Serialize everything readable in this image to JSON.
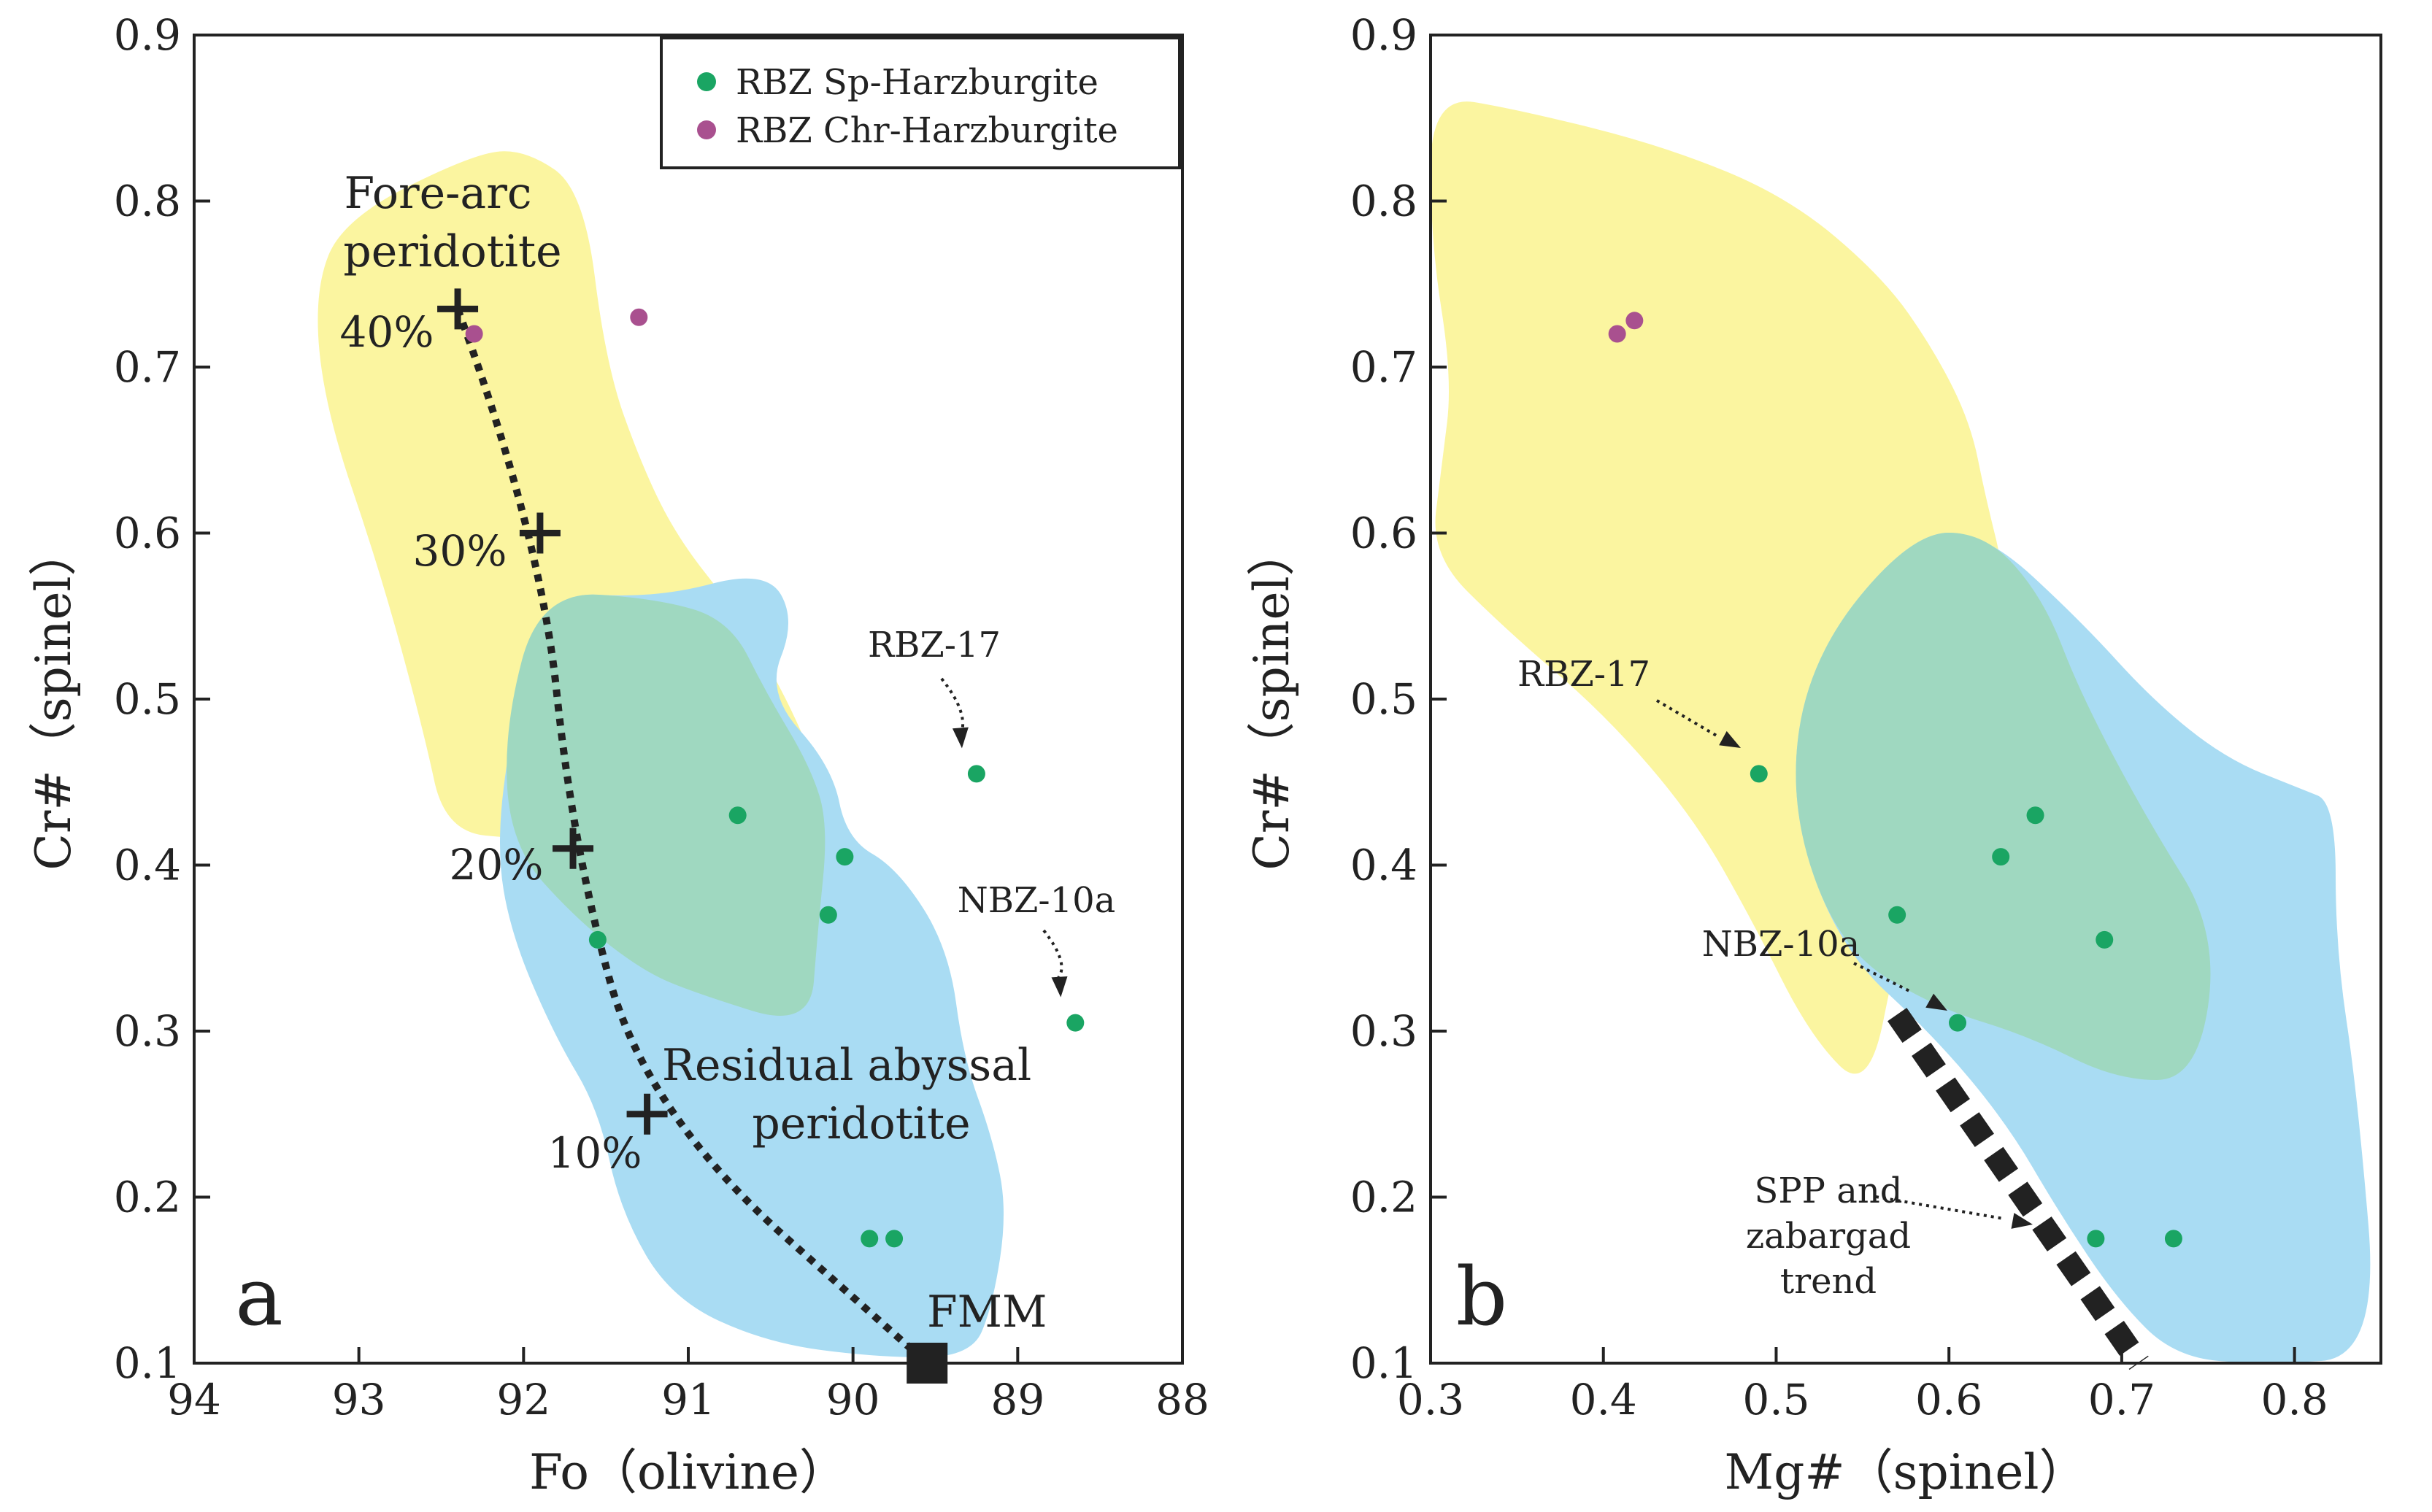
{
  "colors": {
    "fore_arc_field": "#fbf5a0",
    "abyssal_field": "#a9dcf3",
    "overlap_field": "#9fd8c0",
    "sp_harzburgite": "#1aa563",
    "chr_harzburgite": "#a9508f",
    "axis": "#222222",
    "trend_line": "#222222"
  },
  "legend": {
    "items": [
      {
        "label": "RBZ Sp-Harzburgite",
        "color": "#1aa563"
      },
      {
        "label": "RBZ Chr-Harzburgite",
        "color": "#a9508f"
      }
    ],
    "position": "top-right of panel a"
  },
  "chart_data": [
    {
      "type": "scatter",
      "panel_label": "a",
      "xlabel": "Fo（olivine）",
      "ylabel": "Cr#（spinel）",
      "xlim": [
        94,
        88
      ],
      "ylim": [
        0.1,
        0.9
      ],
      "x_reversed": true,
      "xticks": [
        "94",
        "93",
        "92",
        "91",
        "90",
        "89",
        "88"
      ],
      "yticks": [
        "0.1",
        "0.2",
        "0.3",
        "0.4",
        "0.5",
        "0.6",
        "0.7",
        "0.8",
        "0.9"
      ],
      "grid": false,
      "series": [
        {
          "name": "RBZ Sp-Harzburgite",
          "color": "#1aa563",
          "points": [
            [
              90.7,
              0.43
            ],
            [
              90.05,
              0.405
            ],
            [
              90.15,
              0.37
            ],
            [
              91.55,
              0.355
            ],
            [
              89.25,
              0.455
            ],
            [
              88.65,
              0.305
            ],
            [
              89.9,
              0.175
            ],
            [
              89.75,
              0.175
            ]
          ]
        },
        {
          "name": "RBZ Chr-Harzburgite",
          "color": "#a9508f",
          "points": [
            [
              92.3,
              0.72
            ],
            [
              91.3,
              0.73
            ]
          ]
        }
      ],
      "fields": [
        {
          "label_lines": [
            "Fore-arc",
            "peridotite"
          ]
        },
        {
          "label_lines": [
            "Residual abyssal",
            "peridotite"
          ]
        }
      ],
      "melting_trend": {
        "points": [
          [
            92.4,
            0.735
          ],
          [
            91.9,
            0.6
          ],
          [
            91.7,
            0.41
          ],
          [
            91.25,
            0.25
          ],
          [
            89.55,
            0.1
          ]
        ],
        "ticks": [
          {
            "label": "40%",
            "x": 92.4,
            "y": 0.735
          },
          {
            "label": "30%",
            "x": 91.9,
            "y": 0.6
          },
          {
            "label": "20%",
            "x": 91.7,
            "y": 0.41
          },
          {
            "label": "10%",
            "x": 91.25,
            "y": 0.25
          }
        ],
        "origin_label": "FMM",
        "origin": [
          89.55,
          0.1
        ]
      },
      "annotations": [
        {
          "text": "RBZ-17",
          "target": [
            89.25,
            0.455
          ]
        },
        {
          "text": "NBZ-10a",
          "target": [
            88.65,
            0.305
          ]
        }
      ]
    },
    {
      "type": "scatter",
      "panel_label": "b",
      "xlabel": "Mg#（spinel）",
      "ylabel": "Cr#（spinel）",
      "xlim": [
        0.3,
        0.85
      ],
      "ylim": [
        0.1,
        0.9
      ],
      "xticks": [
        "0.3",
        "0.4",
        "0.5",
        "0.6",
        "0.7",
        "0.8"
      ],
      "yticks": [
        "0.1",
        "0.2",
        "0.3",
        "0.4",
        "0.5",
        "0.6",
        "0.7",
        "0.8",
        "0.9"
      ],
      "grid": false,
      "series": [
        {
          "name": "RBZ Sp-Harzburgite",
          "color": "#1aa563",
          "points": [
            [
              0.49,
              0.455
            ],
            [
              0.65,
              0.43
            ],
            [
              0.63,
              0.405
            ],
            [
              0.57,
              0.37
            ],
            [
              0.69,
              0.355
            ],
            [
              0.605,
              0.305
            ],
            [
              0.685,
              0.175
            ],
            [
              0.73,
              0.175
            ]
          ]
        },
        {
          "name": "RBZ Chr-Harzburgite",
          "color": "#a9508f",
          "points": [
            [
              0.408,
              0.72
            ],
            [
              0.418,
              0.728
            ]
          ]
        }
      ],
      "trend_line": {
        "label_lines": [
          "SPP and",
          "zabargad",
          "trend"
        ],
        "points": [
          [
            0.57,
            0.31
          ],
          [
            0.71,
            0.1
          ]
        ]
      },
      "annotations": [
        {
          "text": "RBZ-17",
          "target": [
            0.49,
            0.455
          ]
        },
        {
          "text": "NBZ-10a",
          "target": [
            0.58,
            0.32
          ]
        }
      ]
    }
  ]
}
